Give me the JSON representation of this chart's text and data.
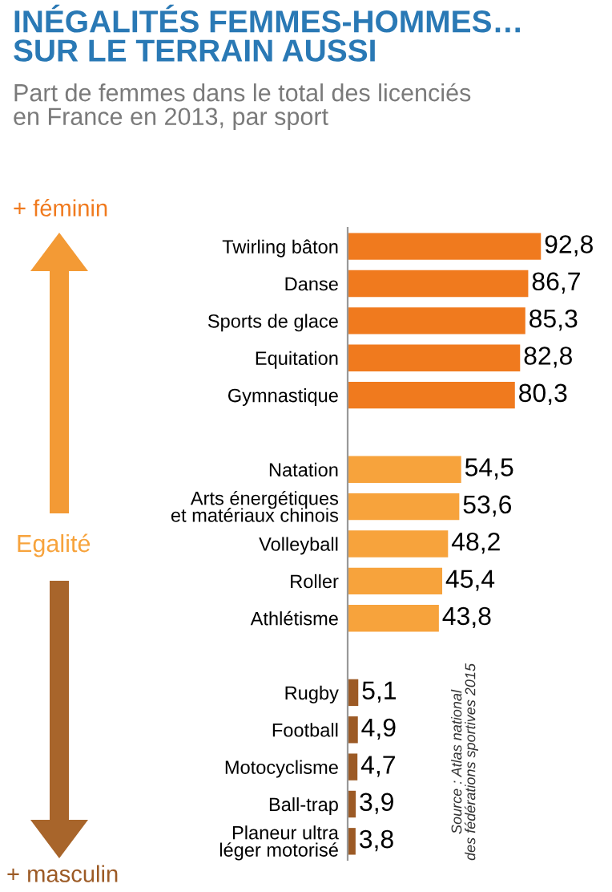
{
  "chart_data": {
    "type": "bar",
    "orientation": "horizontal",
    "title": "INÉGALITÉS FEMMES-HOMMES…\nSUR LE TERRAIN AUSSI",
    "subtitle": "Part de femmes dans le total des licenciés\nen France en 2013, par sport",
    "categories": [
      "Twirling bâton",
      "Danse",
      "Sports de glace",
      "Equitation",
      "Gymnastique",
      null,
      "Natation",
      "Arts énergétiques\net matériaux chinois",
      "Volleyball",
      "Roller",
      "Athlétisme",
      null,
      "Rugby",
      "Football",
      "Motocyclisme",
      "Ball-trap",
      "Planeur ultra\nléger motorisé"
    ],
    "values": [
      92.8,
      86.7,
      85.3,
      82.8,
      80.3,
      null,
      54.5,
      53.6,
      48.2,
      45.4,
      43.8,
      null,
      5.1,
      4.9,
      4.7,
      3.9,
      3.8
    ],
    "value_labels": [
      "92,8",
      "86,7",
      "85,3",
      "82,8",
      "80,3",
      null,
      "54,5",
      "53,6",
      "48,2",
      "45,4",
      "43,8",
      null,
      "5,1",
      "4,9",
      "4,7",
      "3,9",
      "3,8"
    ],
    "colors": [
      "#f07a1e",
      "#f07a1e",
      "#f07a1e",
      "#f07a1e",
      "#f07a1e",
      null,
      "#f7a33c",
      "#f7a33c",
      "#f7a33c",
      "#f7a33c",
      "#f7a33c",
      null,
      "#9c5a25",
      "#9c5a25",
      "#9c5a25",
      "#9c5a25",
      "#9c5a25"
    ],
    "annotations": [
      "+ féminin",
      "Egalité",
      "+ masculin",
      "Source : Atlas national\ndes fédérations sportives 2015"
    ],
    "grid": false,
    "legend": false,
    "tick_labels": "y"
  }
}
